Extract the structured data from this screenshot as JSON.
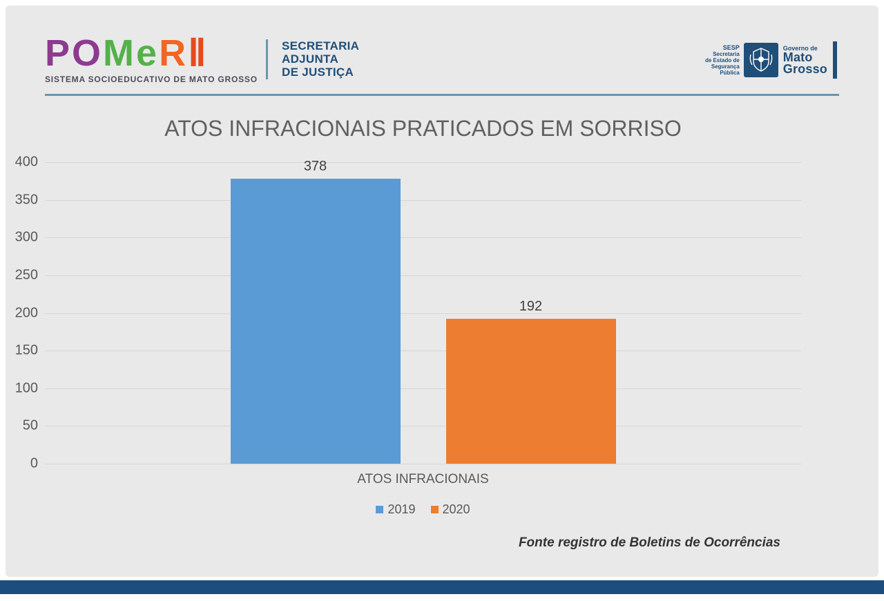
{
  "header": {
    "logo": {
      "letters": [
        {
          "char": "P",
          "color": "#8d3a8f"
        },
        {
          "char": "O",
          "color": "#8d3a8f"
        },
        {
          "char": "M",
          "color": "#56b04a"
        },
        {
          "char": "e",
          "color": "#56b04a"
        },
        {
          "char": "R",
          "color": "#f26522"
        },
        {
          "char": "Ⅱ",
          "color": "#e8491d"
        }
      ],
      "caption": "SISTEMA SOCIOEDUCATIVO DE MATO GROSSO"
    },
    "department": {
      "lines": [
        "SECRETARIA",
        "ADJUNTA",
        "DE JUSTIÇA"
      ]
    },
    "gov": {
      "sesp_lines": [
        "SESP",
        "Secretaria",
        "de Estado de",
        "Segurança",
        "Pública"
      ],
      "crest_icon": "mato-grosso-coat-of-arms",
      "governo_prefix": "Governo de",
      "governo_lines": [
        "Mato",
        "Grosso"
      ]
    }
  },
  "chart_data": {
    "type": "bar",
    "title": "ATOS INFRACIONAIS PRATICADOS EM SORRISO",
    "categories": [
      "ATOS INFRACIONAIS"
    ],
    "series": [
      {
        "name": "2019",
        "values": [
          378
        ],
        "color": "#5b9bd5"
      },
      {
        "name": "2020",
        "values": [
          192
        ],
        "color": "#ed7d31"
      }
    ],
    "xlabel": "",
    "ylabel": "",
    "ylim": [
      0,
      400
    ],
    "yticks": [
      400,
      350,
      300,
      250,
      200,
      150,
      100,
      50,
      0
    ],
    "grid": true,
    "legend_position": "bottom",
    "data_labels": true
  },
  "footer": {
    "source_note": "Fonte registro de Boletins de Ocorrências"
  },
  "colors": {
    "page_bg": "#ffffff",
    "slide_bg": "#e9e9ea",
    "navy": "#1f4e79",
    "bottom_bar": "#1b4e7e",
    "header_rule": "#6e94ad",
    "title_text": "#606060",
    "axis_text": "#595959",
    "gridline": "#d6d6d8"
  }
}
